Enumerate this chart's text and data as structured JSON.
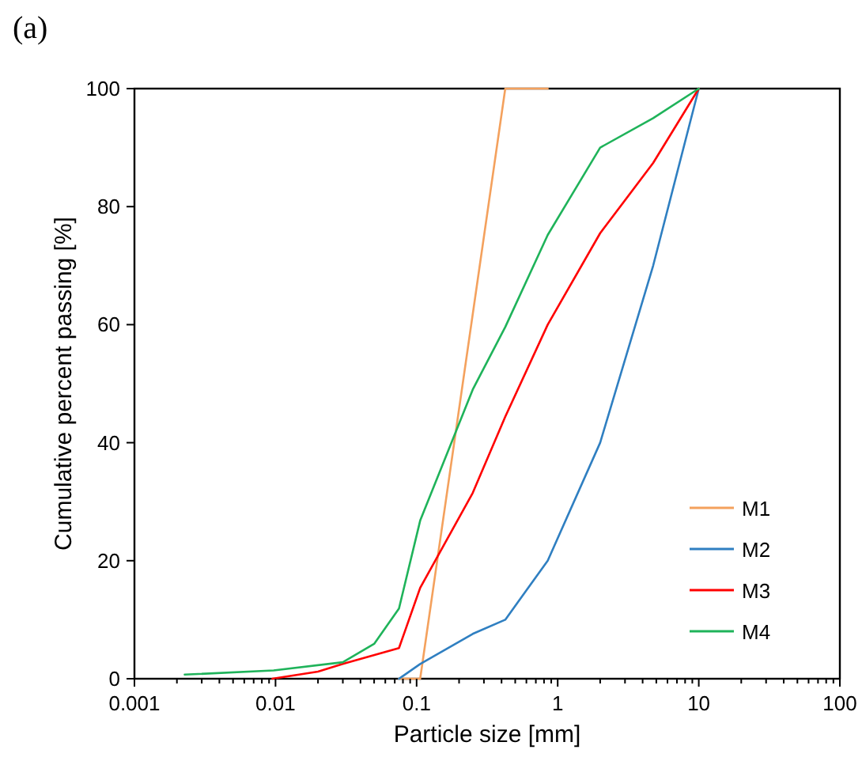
{
  "chart_data": {
    "type": "line",
    "title": "(a)",
    "xlabel": "Particle size [mm]",
    "ylabel": "Cumulative percent passing [%]",
    "log": "x",
    "xlim": [
      0.001,
      100
    ],
    "ylim": [
      0,
      100
    ],
    "xticks": [
      0.001,
      {
        "value": 0.002,
        "label": null
      },
      {
        "value": 0.003,
        "label": null
      },
      {
        "value": 0.004,
        "label": null
      },
      {
        "value": 0.005,
        "label": null
      },
      {
        "value": 0.006,
        "label": null
      },
      {
        "value": 0.007,
        "label": null
      },
      {
        "value": 0.008,
        "label": null
      },
      {
        "value": 0.009,
        "label": null
      },
      0.01,
      {
        "value": 0.02,
        "label": null
      },
      {
        "value": 0.03,
        "label": null
      },
      {
        "value": 0.04,
        "label": null
      },
      {
        "value": 0.05,
        "label": null
      },
      {
        "value": 0.06,
        "label": null
      },
      {
        "value": 0.07,
        "label": null
      },
      {
        "value": 0.08,
        "label": null
      },
      {
        "value": 0.09,
        "label": null
      },
      0.1,
      {
        "value": 0.2,
        "label": null
      },
      {
        "value": 0.3,
        "label": null
      },
      {
        "value": 0.4,
        "label": null
      },
      {
        "value": 0.5,
        "label": null
      },
      {
        "value": 0.6,
        "label": null
      },
      {
        "value": 0.7,
        "label": null
      },
      {
        "value": 0.8,
        "label": null
      },
      {
        "value": 0.9,
        "label": null
      },
      1,
      {
        "value": 2,
        "label": null
      },
      {
        "value": 3,
        "label": null
      },
      {
        "value": 4,
        "label": null
      },
      {
        "value": 5,
        "label": null
      },
      {
        "value": 6,
        "label": null
      },
      {
        "value": 7,
        "label": null
      },
      {
        "value": 8,
        "label": null
      },
      {
        "value": 9,
        "label": null
      },
      10,
      {
        "value": 20,
        "label": null
      },
      {
        "value": 30,
        "label": null
      },
      {
        "value": 40,
        "label": null
      },
      {
        "value": 50,
        "label": null
      },
      {
        "value": 60,
        "label": null
      },
      {
        "value": 70,
        "label": null
      },
      {
        "value": 80,
        "label": null
      },
      {
        "value": 90,
        "label": null
      },
      100
    ],
    "yticks": [
      0,
      20,
      40,
      60,
      80,
      100
    ],
    "grid": false,
    "legend": "bottom right",
    "marker": "none",
    "line_style": "solid",
    "series": [
      {
        "name": "M1",
        "color": "#f4a15d",
        "x": [
          0.075,
          0.106,
          0.425,
          0.85
        ],
        "values": [
          0,
          0,
          100,
          100
        ]
      },
      {
        "name": "M2",
        "color": "#2f7fc1",
        "x": [
          0.075,
          0.106,
          0.25,
          0.425,
          0.85,
          2,
          4.75,
          10
        ],
        "values": [
          0,
          2.5,
          7.6,
          10,
          20,
          40,
          70,
          100
        ]
      },
      {
        "name": "M3",
        "color": "#ff0000",
        "x": [
          0.0095,
          0.02,
          0.03,
          0.075,
          0.106,
          0.25,
          0.425,
          0.85,
          2,
          4.75,
          10
        ],
        "values": [
          0,
          1.2,
          2.5,
          5.2,
          15.4,
          31.5,
          44.4,
          60,
          75.5,
          87.4,
          100
        ]
      },
      {
        "name": "M4",
        "color": "#1fb35a",
        "x": [
          0.00227,
          0.0097,
          0.03,
          0.05,
          0.075,
          0.106,
          0.25,
          0.425,
          0.85,
          2,
          4.75,
          10
        ],
        "values": [
          0.7,
          1.4,
          2.8,
          5.9,
          11.9,
          26.8,
          49,
          59.6,
          75.2,
          90,
          95,
          100
        ]
      }
    ]
  }
}
